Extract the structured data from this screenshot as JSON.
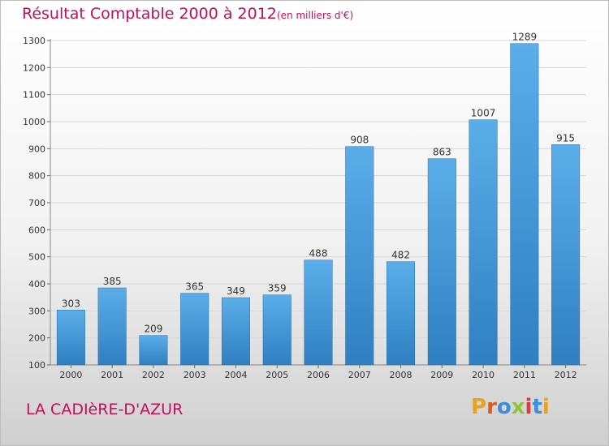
{
  "header": {
    "title": "Résultat Comptable 2000 à 2012",
    "subtitle": "(en milliers d'€)"
  },
  "footer": {
    "commune": "LA CADIèRE-D'AZUR",
    "brand": "Proxiti",
    "brand_colors": [
      "#e8a020",
      "#e05a1a",
      "#3a8fd6",
      "#8cc43a",
      "#e03a3a",
      "#3a8fd6",
      "#e8a020"
    ]
  },
  "colors": {
    "bar_top": "#5aaee8",
    "bar_bottom": "#2f7fc2",
    "grid": "#d6d6d6",
    "accent": "#c0105a"
  },
  "chart_data": {
    "type": "bar",
    "categories": [
      "2000",
      "2001",
      "2002",
      "2003",
      "2004",
      "2005",
      "2006",
      "2007",
      "2008",
      "2009",
      "2010",
      "2011",
      "2012"
    ],
    "values": [
      303,
      385,
      209,
      365,
      349,
      359,
      488,
      908,
      482,
      863,
      1007,
      1289,
      915
    ],
    "ylim": [
      100,
      1300
    ],
    "yticks": [
      100,
      200,
      300,
      400,
      500,
      600,
      700,
      800,
      900,
      1000,
      1100,
      1200,
      1300
    ],
    "grid": true,
    "legend": "none"
  }
}
